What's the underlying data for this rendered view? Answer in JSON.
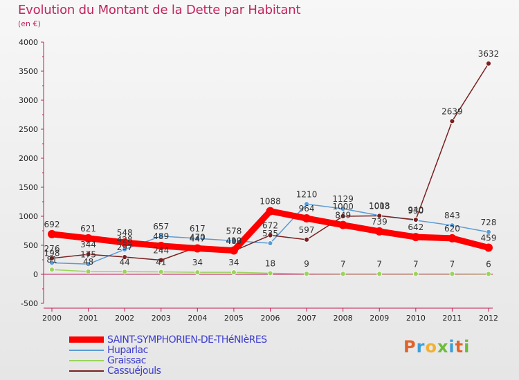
{
  "title": "Evolution du Montant de la Dette par Habitant",
  "unit": "(en €)",
  "logo": "Proxiti",
  "chart_data": {
    "type": "line",
    "x": [
      "2000",
      "2001",
      "2002",
      "2003",
      "2004",
      "2005",
      "2006",
      "2007",
      "2008",
      "2009",
      "2010",
      "2011",
      "2012"
    ],
    "ylim": [
      -500,
      4000
    ],
    "yticks": [
      -500,
      0,
      500,
      1000,
      1500,
      2000,
      2500,
      3000,
      3500,
      4000
    ],
    "grid": false,
    "legend_position": "bottom-left",
    "series": [
      {
        "name": "SAINT-SYMPHORIEN-DE-THéNIèRES",
        "color": "#ff0000",
        "values": [
          692,
          621,
          548,
          489,
          447,
          410,
          1088,
          964,
          849,
          739,
          642,
          620,
          459
        ]
      },
      {
        "name": "Huparlac",
        "color": "#5a9bd5",
        "values": [
          198,
          175,
          428,
          657,
          617,
          578,
          535,
          1210,
          1129,
          1013,
          930,
          843,
          728
        ]
      },
      {
        "name": "Graissac",
        "color": "#9ad45a",
        "values": [
          81,
          48,
          44,
          41,
          34,
          34,
          18,
          9,
          7,
          7,
          7,
          7,
          6
        ]
      },
      {
        "name": "Cassuéjouls",
        "color": "#7a1f1f",
        "values": [
          276,
          344,
          297,
          244,
          470,
          403,
          672,
          597,
          1000,
          1008,
          940,
          2639,
          3632
        ]
      }
    ],
    "labels": [
      [
        "692",
        "621",
        "548",
        "489",
        "447",
        "410",
        "1088",
        "964",
        "849",
        "739",
        "642",
        "620",
        "459"
      ],
      [
        "198",
        "175",
        "428",
        "657",
        "617",
        "578",
        "535",
        "1210",
        "1129",
        "1013",
        "930",
        "843",
        "728"
      ],
      [
        "81",
        "48",
        "44",
        "41",
        "34",
        "34",
        "18",
        "9",
        "7",
        "7",
        "7",
        "7",
        "6"
      ],
      [
        "276",
        "344",
        "297",
        "244",
        "470",
        "403",
        "672",
        "597",
        "1000",
        "1008",
        "940",
        "2639",
        "3632"
      ]
    ]
  },
  "colors": {
    "title": "#c1245e",
    "legend_text": "#3b3bd0"
  }
}
